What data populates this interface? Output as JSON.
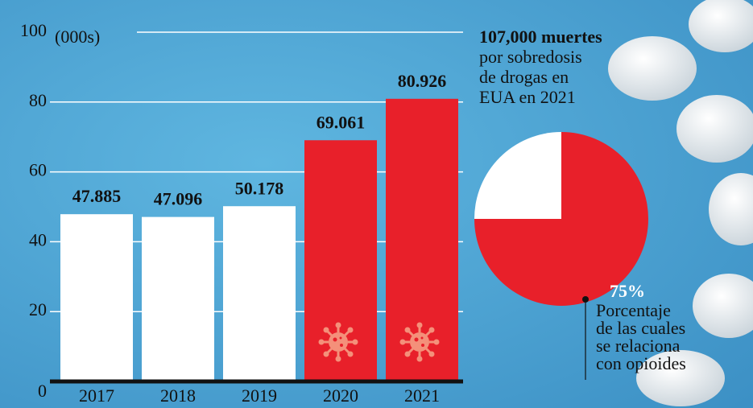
{
  "chart_data": {
    "type": "bar",
    "categories": [
      "2017",
      "2018",
      "2019",
      "2020",
      "2021"
    ],
    "values": [
      47.885,
      47.096,
      50.178,
      69.061,
      80.926
    ],
    "colors": [
      "#ffffff",
      "#ffffff",
      "#ffffff",
      "#e8202a",
      "#e8202a"
    ],
    "ylim": [
      0,
      100
    ],
    "yticks": [
      0,
      20,
      40,
      60,
      80,
      100
    ],
    "y_unit": "(000s)",
    "grid": true,
    "headline": [
      "107,000 muertes",
      "por sobredosis",
      "de drogas en",
      "EUA en 2021"
    ],
    "pie": {
      "type": "pie",
      "values": [
        75,
        25
      ],
      "value_labels": [
        "75%",
        null
      ],
      "colors": [
        "#e8202a",
        "#ffffff"
      ],
      "annotation": [
        "Porcentaje",
        "de las cuales",
        "se relaciona",
        "con opioides"
      ]
    }
  }
}
